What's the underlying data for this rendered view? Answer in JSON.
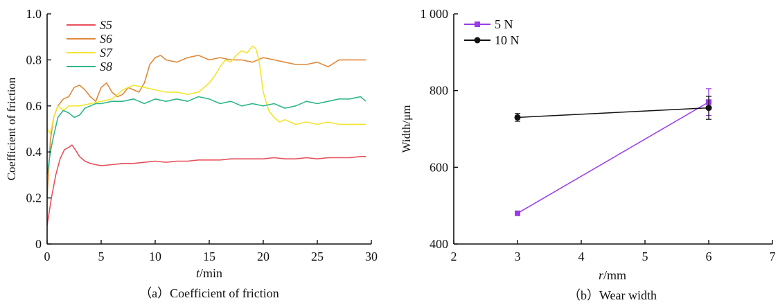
{
  "chart_data": [
    {
      "type": "line",
      "caption": "（a）Coefficient of friction",
      "xlabel_var": "t",
      "xlabel_unit": "/min",
      "ylabel": "Coefficient of friction",
      "xlim": [
        0,
        30
      ],
      "ylim": [
        0,
        1.0
      ],
      "xticks": [
        "0",
        "5",
        "10",
        "15",
        "20",
        "25",
        "30"
      ],
      "yticks": [
        "0",
        "0.2",
        "0.4",
        "0.6",
        "0.8",
        "1.0"
      ],
      "legend_position": "top-left",
      "grid": false,
      "series": [
        {
          "name": "S5",
          "color": "#e8505b",
          "x": [
            0,
            0.4,
            0.8,
            1.2,
            1.6,
            2,
            2.3,
            2.6,
            3,
            3.5,
            4,
            4.5,
            5,
            6,
            7,
            8,
            9,
            10,
            11,
            12,
            13,
            14,
            15,
            16,
            17,
            18,
            19,
            20,
            21,
            22,
            23,
            24,
            25,
            26,
            27,
            28,
            29,
            29.5
          ],
          "y": [
            0.08,
            0.2,
            0.3,
            0.37,
            0.41,
            0.42,
            0.43,
            0.41,
            0.38,
            0.36,
            0.35,
            0.345,
            0.34,
            0.345,
            0.35,
            0.35,
            0.355,
            0.36,
            0.355,
            0.36,
            0.36,
            0.365,
            0.365,
            0.365,
            0.37,
            0.37,
            0.37,
            0.37,
            0.375,
            0.37,
            0.37,
            0.375,
            0.37,
            0.375,
            0.375,
            0.375,
            0.38,
            0.38
          ]
        },
        {
          "name": "S6",
          "color": "#e0883a",
          "x": [
            0,
            0.3,
            0.6,
            1,
            1.5,
            2,
            2.5,
            3,
            3.5,
            4,
            4.5,
            5,
            5.5,
            6,
            6.5,
            7,
            7.5,
            8,
            8.5,
            9,
            9.5,
            10,
            10.5,
            11,
            12,
            13,
            14,
            15,
            16,
            17,
            18,
            19,
            20,
            21,
            22,
            23,
            24,
            25,
            26,
            27,
            28,
            29,
            29.5
          ],
          "y": [
            0.2,
            0.45,
            0.55,
            0.6,
            0.63,
            0.64,
            0.68,
            0.69,
            0.67,
            0.64,
            0.62,
            0.68,
            0.7,
            0.66,
            0.64,
            0.65,
            0.68,
            0.67,
            0.66,
            0.7,
            0.78,
            0.81,
            0.82,
            0.8,
            0.79,
            0.81,
            0.82,
            0.8,
            0.81,
            0.8,
            0.8,
            0.79,
            0.81,
            0.8,
            0.79,
            0.78,
            0.78,
            0.79,
            0.77,
            0.8,
            0.8,
            0.8,
            0.8
          ]
        },
        {
          "name": "S7",
          "color": "#f2e52e",
          "x": [
            0,
            0.3,
            0.6,
            1,
            1.5,
            2,
            3,
            4,
            5,
            6,
            7,
            8,
            9,
            10,
            11,
            12,
            13,
            14,
            15,
            15.5,
            16,
            16.5,
            17,
            17.5,
            18,
            18.5,
            19,
            19.3,
            19.6,
            20,
            20.5,
            21,
            21.5,
            22,
            23,
            24,
            25,
            26,
            27,
            28,
            29,
            29.5
          ],
          "y": [
            0.5,
            0.48,
            0.55,
            0.6,
            0.58,
            0.6,
            0.6,
            0.61,
            0.62,
            0.63,
            0.67,
            0.69,
            0.68,
            0.67,
            0.66,
            0.66,
            0.65,
            0.66,
            0.7,
            0.73,
            0.77,
            0.8,
            0.79,
            0.82,
            0.84,
            0.83,
            0.86,
            0.85,
            0.8,
            0.66,
            0.58,
            0.55,
            0.53,
            0.54,
            0.52,
            0.53,
            0.52,
            0.53,
            0.52,
            0.52,
            0.52,
            0.52
          ]
        },
        {
          "name": "S8",
          "color": "#2db58a",
          "x": [
            0,
            0.3,
            0.6,
            1,
            1.5,
            2,
            2.5,
            3,
            3.5,
            4,
            4.5,
            5,
            6,
            7,
            8,
            9,
            10,
            11,
            12,
            13,
            14,
            15,
            16,
            17,
            18,
            19,
            20,
            21,
            22,
            23,
            24,
            25,
            26,
            27,
            28,
            29,
            29.5
          ],
          "y": [
            0.3,
            0.4,
            0.47,
            0.55,
            0.58,
            0.57,
            0.55,
            0.56,
            0.59,
            0.6,
            0.61,
            0.61,
            0.62,
            0.62,
            0.63,
            0.61,
            0.63,
            0.62,
            0.63,
            0.62,
            0.64,
            0.63,
            0.61,
            0.62,
            0.6,
            0.61,
            0.6,
            0.61,
            0.59,
            0.6,
            0.62,
            0.61,
            0.62,
            0.63,
            0.63,
            0.64,
            0.62
          ]
        }
      ]
    },
    {
      "type": "line",
      "caption": "（b）Wear width",
      "xlabel_var": "r",
      "xlabel_unit": "/mm",
      "ylabel": "Width/μm",
      "xlim": [
        2,
        7
      ],
      "ylim": [
        400,
        1000
      ],
      "xticks": [
        "2",
        "3",
        "4",
        "5",
        "6",
        "7"
      ],
      "yticks": [
        "400",
        "600",
        "800",
        "1 000"
      ],
      "legend_position": "top-left",
      "grid": false,
      "series": [
        {
          "name": "5 N",
          "color": "#9b3be8",
          "marker": "square",
          "x": [
            3,
            6
          ],
          "y": [
            480,
            770
          ],
          "yerr": [
            3,
            35
          ]
        },
        {
          "name": "10 N",
          "color": "#111111",
          "marker": "circle",
          "x": [
            3,
            6
          ],
          "y": [
            730,
            755
          ],
          "yerr": [
            10,
            30
          ]
        }
      ]
    }
  ]
}
